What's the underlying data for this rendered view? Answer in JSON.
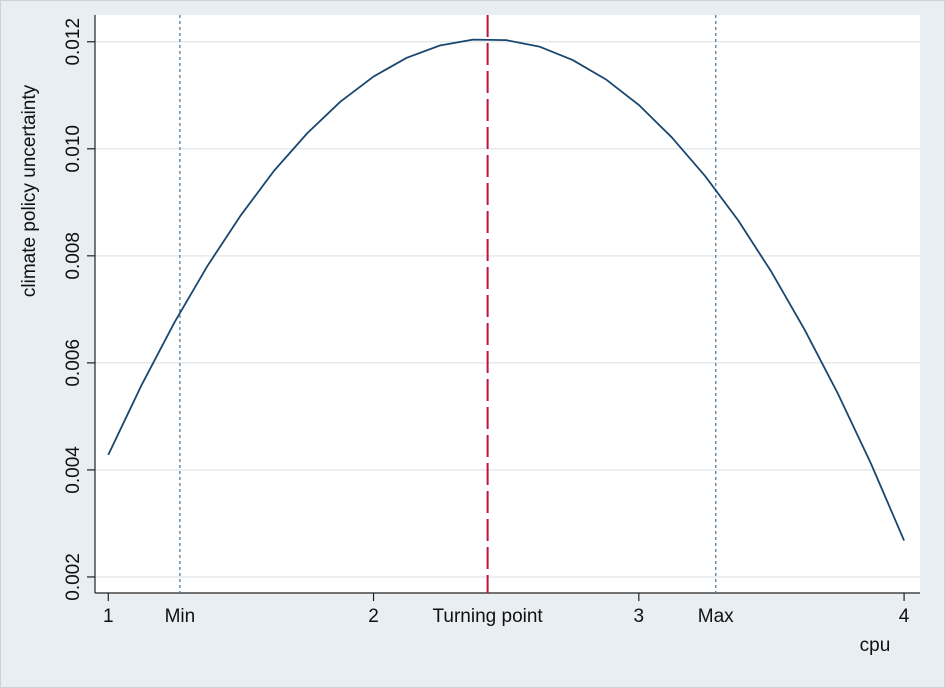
{
  "chart_data": {
    "type": "line",
    "y_label": "climate policy uncertainty",
    "x_label": "cpu",
    "x": [
      1,
      1.125,
      1.25,
      1.375,
      1.5,
      1.625,
      1.75,
      1.875,
      2,
      2.125,
      2.25,
      2.375,
      2.5,
      2.625,
      2.75,
      2.875,
      3,
      3.125,
      3.25,
      3.375,
      3.5,
      3.625,
      3.75,
      3.875,
      4
    ],
    "values": [
      0.00428,
      0.00558,
      0.00676,
      0.00782,
      0.00876,
      0.00959,
      0.01029,
      0.01088,
      0.01135,
      0.0117,
      0.01193,
      0.01204,
      0.01203,
      0.01191,
      0.01166,
      0.0113,
      0.01082,
      0.01021,
      0.00949,
      0.00866,
      0.0077,
      0.00662,
      0.00543,
      0.00412,
      0.00268
    ],
    "color": "#1a476f",
    "xlim": [
      0.95,
      4.06
    ],
    "ylim": [
      0.0017,
      0.0125
    ],
    "xticks": [
      1,
      2,
      3,
      4
    ],
    "yticks": [
      0.002,
      0.004,
      0.006,
      0.008,
      {
        "value": 0.01,
        "label": "0.010"
      },
      0.012
    ],
    "grid": true,
    "annotations": [
      {
        "x": 1.27,
        "label": "Min",
        "style": "dotted",
        "color": "#5a7f9c"
      },
      {
        "x": 2.43,
        "label": "Turning point",
        "style": "dashed",
        "color": "#c0143c"
      },
      {
        "x": 3.29,
        "label": "Max",
        "style": "dotted",
        "color": "#5a7f9c"
      }
    ]
  }
}
